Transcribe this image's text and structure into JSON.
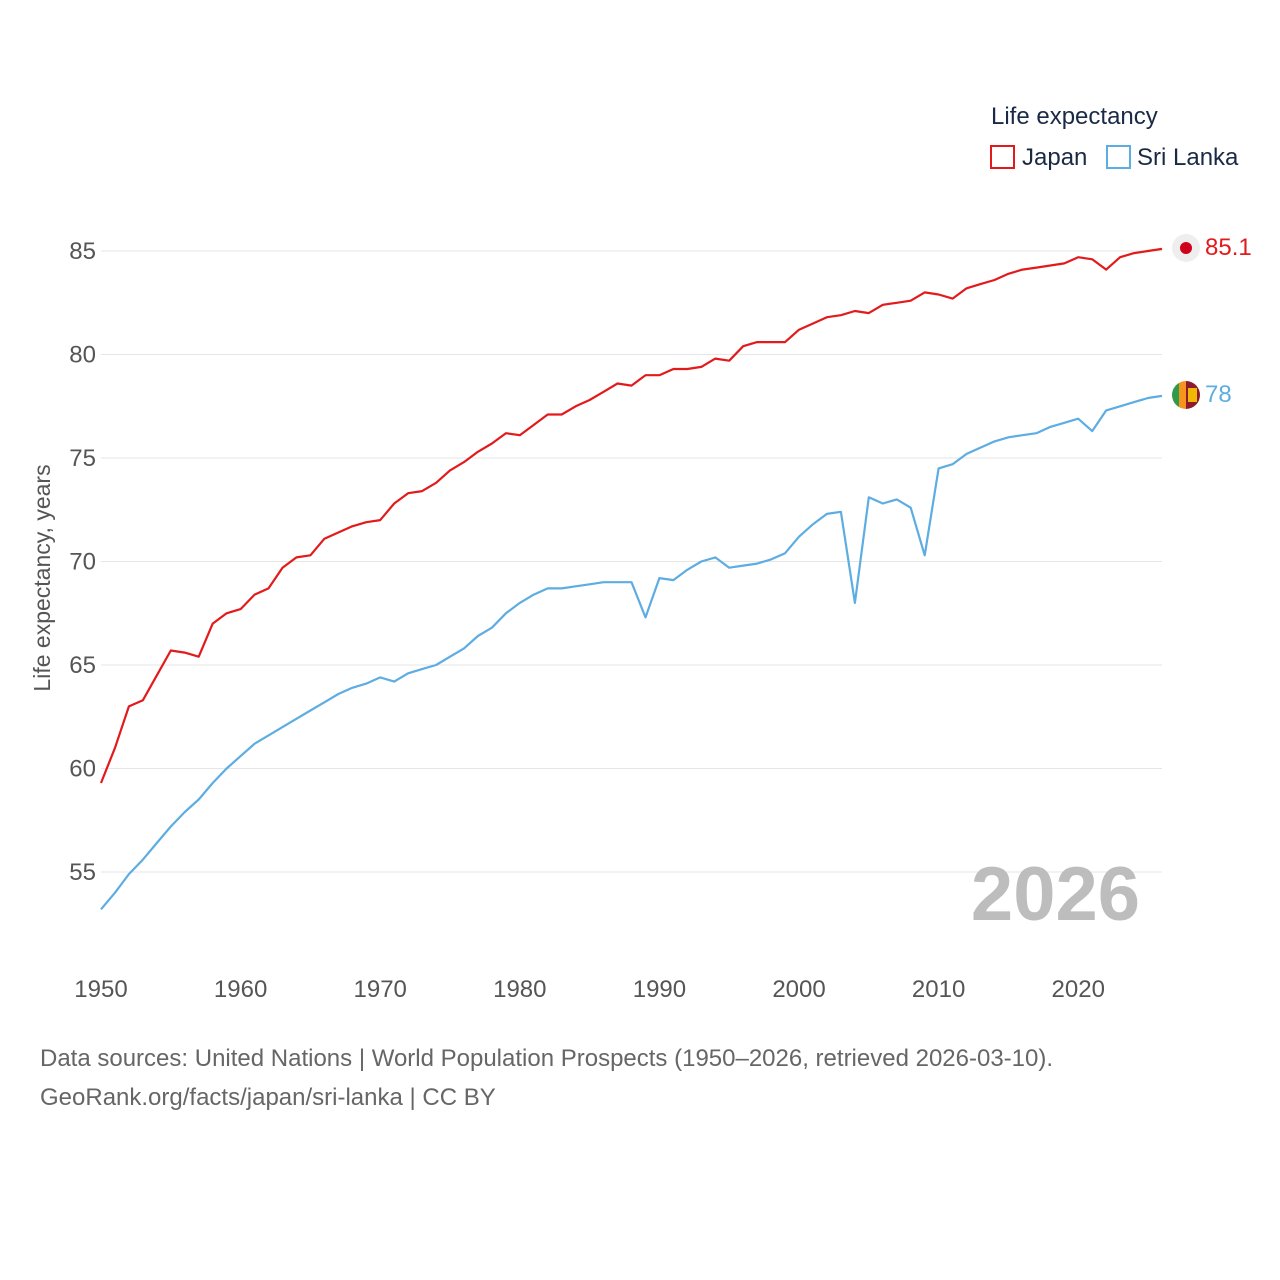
{
  "chart_data": {
    "type": "line",
    "title": "",
    "xlabel": "",
    "ylabel": "Life expectancy, years",
    "xlim": [
      1950,
      2026
    ],
    "ylim": [
      52.5,
      87
    ],
    "x_ticks": [
      1950,
      1960,
      1970,
      1980,
      1990,
      2000,
      2010,
      2020
    ],
    "y_ticks": [
      55,
      60,
      65,
      70,
      75,
      80,
      85
    ],
    "grid": true,
    "legend": {
      "title": "Life expectancy",
      "placement": "top-right"
    },
    "year_watermark": "2026",
    "x": [
      1950,
      1951,
      1952,
      1953,
      1954,
      1955,
      1956,
      1957,
      1958,
      1959,
      1960,
      1961,
      1962,
      1963,
      1964,
      1965,
      1966,
      1967,
      1968,
      1969,
      1970,
      1971,
      1972,
      1973,
      1974,
      1975,
      1976,
      1977,
      1978,
      1979,
      1980,
      1981,
      1982,
      1983,
      1984,
      1985,
      1986,
      1987,
      1988,
      1989,
      1990,
      1991,
      1992,
      1993,
      1994,
      1995,
      1996,
      1997,
      1998,
      1999,
      2000,
      2001,
      2002,
      2003,
      2004,
      2005,
      2006,
      2007,
      2008,
      2009,
      2010,
      2011,
      2012,
      2013,
      2014,
      2015,
      2016,
      2017,
      2018,
      2019,
      2020,
      2021,
      2022,
      2023,
      2024,
      2025,
      2026
    ],
    "series": [
      {
        "name": "Japan",
        "color": "#e31a1c",
        "end_label": "85.1",
        "marker": "japan-flag",
        "values": [
          59.3,
          61.0,
          63.0,
          63.3,
          64.5,
          65.7,
          65.6,
          65.4,
          67.0,
          67.5,
          67.7,
          68.4,
          68.7,
          69.7,
          70.2,
          70.3,
          71.1,
          71.4,
          71.7,
          71.9,
          72.0,
          72.8,
          73.3,
          73.4,
          73.8,
          74.4,
          74.8,
          75.3,
          75.7,
          76.2,
          76.1,
          76.6,
          77.1,
          77.1,
          77.5,
          77.8,
          78.2,
          78.6,
          78.5,
          79.0,
          79.0,
          79.3,
          79.3,
          79.4,
          79.8,
          79.7,
          80.4,
          80.6,
          80.6,
          80.6,
          81.2,
          81.5,
          81.8,
          81.9,
          82.1,
          82.0,
          82.4,
          82.5,
          82.6,
          83.0,
          82.9,
          82.7,
          83.2,
          83.4,
          83.6,
          83.9,
          84.1,
          84.2,
          84.3,
          84.4,
          84.7,
          84.6,
          84.1,
          84.7,
          84.9,
          85.0,
          85.1
        ]
      },
      {
        "name": "Sri Lanka",
        "color": "#5dade2",
        "end_label": "78",
        "marker": "sri-lanka-flag",
        "values": [
          53.2,
          54.0,
          54.9,
          55.6,
          56.4,
          57.2,
          57.9,
          58.5,
          59.3,
          60.0,
          60.6,
          61.2,
          61.6,
          62.0,
          62.4,
          62.8,
          63.2,
          63.6,
          63.9,
          64.1,
          64.4,
          64.2,
          64.6,
          64.8,
          65.0,
          65.4,
          65.8,
          66.4,
          66.8,
          67.5,
          68.0,
          68.4,
          68.7,
          68.7,
          68.8,
          68.9,
          69.0,
          69.0,
          69.0,
          67.3,
          69.2,
          69.1,
          69.6,
          70.0,
          70.2,
          69.7,
          69.8,
          69.9,
          70.1,
          70.4,
          71.2,
          71.8,
          72.3,
          72.4,
          68.0,
          73.1,
          72.8,
          73.0,
          72.6,
          70.3,
          74.5,
          74.7,
          75.2,
          75.5,
          75.8,
          76.0,
          76.1,
          76.2,
          76.5,
          76.7,
          76.9,
          76.3,
          77.3,
          77.5,
          77.7,
          77.9,
          78.0
        ]
      }
    ]
  },
  "footer": {
    "line1": "Data sources: United Nations | World Population Prospects (1950–2026, retrieved 2026-03-10).",
    "line2": "GeoRank.org/facts/japan/sri-lanka | CC BY"
  }
}
